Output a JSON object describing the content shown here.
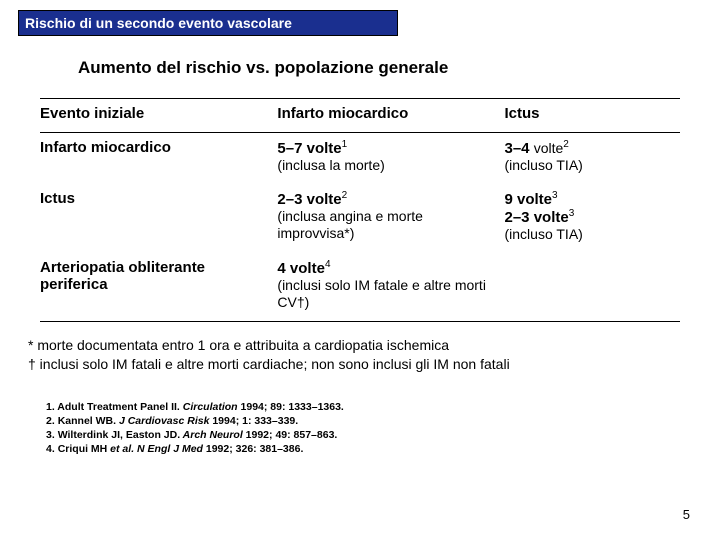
{
  "title": "Rischio di un secondo evento vascolare",
  "subtitle": "Aumento del rischio vs. popolazione generale",
  "headers": {
    "c1": "Evento iniziale",
    "c2": "Infarto miocardico",
    "c3": "Ictus"
  },
  "rows": [
    {
      "c1": "Infarto miocardico",
      "c2_bold": "5–7 volte",
      "c2_sup": "1",
      "c2_paren": "(inclusa la morte)",
      "c3_bold": "3–4 ",
      "c3_bold2": "volte",
      "c3_sup": "2",
      "c3_paren": "(incluso TIA)"
    },
    {
      "c1": "Ictus",
      "c2_bold": "2–3 volte",
      "c2_sup": "2",
      "c2_paren": "(inclusa angina e morte improvvisa*)",
      "c3_bold": "9 volte",
      "c3_sup": "3",
      "c3_bold_line2": "2–3 volte",
      "c3_sup2": "3",
      "c3_paren": "(incluso TIA)"
    },
    {
      "c1": "Arteriopatia obliterante periferica",
      "c2_bold": "4 volte",
      "c2_sup": "4",
      "c2_paren": "(inclusi solo IM fatale e altre morti CV†)",
      "c3_bold": "",
      "c3_paren": ""
    }
  ],
  "footnotes": {
    "a": "* morte documentata entro 1 ora e attribuita a cardiopatia ischemica",
    "b": "† inclusi solo IM fatali e altre morti cardiache; non sono inclusi gli IM non fatali"
  },
  "refs": [
    {
      "n": "1.",
      "text": "Adult Treatment Panel II.",
      "ital": " Circulation",
      "rest": " 1994; 89: 1333–1363."
    },
    {
      "n": "2.",
      "text": "Kannel WB.",
      "ital": " J Cardiovasc Risk",
      "rest": " 1994; 1: 333–339."
    },
    {
      "n": "3.",
      "text": "Wilterdink JI, Easton JD.",
      "ital": " Arch Neurol",
      "rest": " 1992; 49: 857–863."
    },
    {
      "n": "4.",
      "text": "Criqui MH",
      "ital": " et al. N Engl J Med",
      "rest": " 1992; 326: 381–386."
    }
  ],
  "pagenum": "5",
  "colors": {
    "band_bg": "#1a2f8f",
    "band_fg": "#ffffff",
    "text": "#000000",
    "bg": "#ffffff"
  }
}
